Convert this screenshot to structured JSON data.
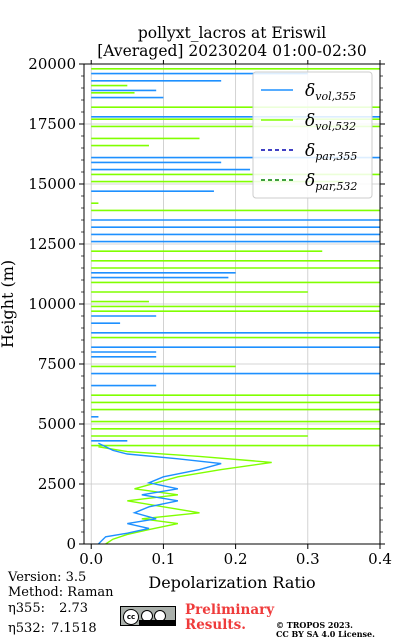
{
  "chart_data": {
    "type": "line",
    "title": "pollyxt_lacros at Eriswil",
    "subtitle": "[Averaged] 20230204 01:00-02:30",
    "xlabel": "Depolarization Ratio",
    "ylabel": "Height (m)",
    "xlim": [
      -0.01,
      0.4
    ],
    "ylim": [
      0,
      20000
    ],
    "x_ticks": [
      "0.0",
      "0.1",
      "0.2",
      "0.3",
      "0.4"
    ],
    "y_ticks": [
      "0",
      "2500",
      "5000",
      "7500",
      "10000",
      "12500",
      "15000",
      "17500",
      "20000"
    ],
    "grid": true,
    "legend_position": "top-right",
    "legend": [
      {
        "label_main": "δ",
        "label_sub": "vol,355",
        "style": "solid",
        "color": "#1e90ff"
      },
      {
        "label_main": "δ",
        "label_sub": "vol,532",
        "style": "solid",
        "color": "#80ff00"
      },
      {
        "label_main": "δ",
        "label_sub": "par,355",
        "style": "dashed",
        "color": "#0000b0"
      },
      {
        "label_main": "δ",
        "label_sub": "par,532",
        "style": "dashed",
        "color": "#008000"
      }
    ],
    "series": [
      {
        "name": "δvol,355",
        "color": "#1e90ff",
        "x": [
          0.01,
          0.015,
          0.02,
          0.05,
          0.08,
          0.05,
          0.09,
          0.06,
          0.08,
          0.12,
          0.07,
          0.12,
          0.08,
          0.1,
          0.15,
          0.18,
          0.12,
          0.05,
          0.03,
          0.02,
          0.01
        ],
        "y": [
          0,
          150,
          300,
          450,
          650,
          850,
          1050,
          1300,
          1550,
          1800,
          2050,
          2300,
          2550,
          2800,
          3100,
          3350,
          3550,
          3750,
          3900,
          4050,
          4200
        ]
      },
      {
        "name": "δvol,532",
        "color": "#80ff00",
        "x": [
          0.02,
          0.03,
          0.05,
          0.08,
          0.12,
          0.07,
          0.15,
          0.1,
          0.05,
          0.12,
          0.06,
          0.09,
          0.12,
          0.18,
          0.25,
          0.15,
          0.05,
          0.01
        ],
        "y": [
          0,
          200,
          400,
          600,
          850,
          1050,
          1300,
          1550,
          1800,
          2050,
          2300,
          2550,
          2800,
          3100,
          3400,
          3650,
          3850,
          4050
        ]
      }
    ],
    "cloud_spikes": {
      "blue": [
        {
          "y": 19600,
          "x": 0.3
        },
        {
          "y": 19300,
          "x": 0.18
        },
        {
          "y": 18900,
          "x": 0.09
        },
        {
          "y": 18600,
          "x": 0.1
        },
        {
          "y": 17800,
          "x": 0.4
        },
        {
          "y": 16100,
          "x": 0.4
        },
        {
          "y": 15900,
          "x": 0.18
        },
        {
          "y": 15600,
          "x": 0.22
        },
        {
          "y": 14700,
          "x": 0.17
        },
        {
          "y": 13500,
          "x": 0.4
        },
        {
          "y": 13200,
          "x": 0.4
        },
        {
          "y": 12900,
          "x": 0.4
        },
        {
          "y": 12600,
          "x": 0.4
        },
        {
          "y": 11300,
          "x": 0.2
        },
        {
          "y": 11100,
          "x": 0.19
        },
        {
          "y": 9500,
          "x": 0.09
        },
        {
          "y": 9200,
          "x": 0.04
        },
        {
          "y": 8800,
          "x": 0.4
        },
        {
          "y": 8200,
          "x": 0.4
        },
        {
          "y": 8000,
          "x": 0.09
        },
        {
          "y": 7800,
          "x": 0.09
        },
        {
          "y": 7100,
          "x": 0.4
        },
        {
          "y": 6600,
          "x": 0.09
        },
        {
          "y": 5300,
          "x": 0.01
        },
        {
          "y": 4300,
          "x": 0.05
        }
      ],
      "green": [
        {
          "y": 19800,
          "x": 0.4
        },
        {
          "y": 19100,
          "x": 0.05
        },
        {
          "y": 18800,
          "x": 0.06
        },
        {
          "y": 18200,
          "x": 0.4
        },
        {
          "y": 17700,
          "x": 0.4
        },
        {
          "y": 17400,
          "x": 0.4
        },
        {
          "y": 16900,
          "x": 0.15
        },
        {
          "y": 16600,
          "x": 0.08
        },
        {
          "y": 15400,
          "x": 0.4
        },
        {
          "y": 15100,
          "x": 0.35
        },
        {
          "y": 14200,
          "x": 0.01
        },
        {
          "y": 13900,
          "x": 0.4
        },
        {
          "y": 12200,
          "x": 0.32
        },
        {
          "y": 11800,
          "x": 0.4
        },
        {
          "y": 11500,
          "x": 0.4
        },
        {
          "y": 10900,
          "x": 0.4
        },
        {
          "y": 10500,
          "x": 0.3
        },
        {
          "y": 10100,
          "x": 0.08
        },
        {
          "y": 9900,
          "x": 0.4
        },
        {
          "y": 9700,
          "x": 0.4
        },
        {
          "y": 8600,
          "x": 0.4
        },
        {
          "y": 7400,
          "x": 0.2
        },
        {
          "y": 6200,
          "x": 0.4
        },
        {
          "y": 5900,
          "x": 0.4
        },
        {
          "y": 5600,
          "x": 0.4
        },
        {
          "y": 5100,
          "x": 0.4
        },
        {
          "y": 4800,
          "x": 0.4
        },
        {
          "y": 4500,
          "x": 0.3
        },
        {
          "y": 4100,
          "x": 0.4
        }
      ]
    }
  },
  "meta": {
    "version": "Version: 3.5",
    "method": "Method: Raman",
    "eta355_label": "η355:",
    "eta355_value": "2.73",
    "eta532_label": "η532:",
    "eta532_value": "7.1518"
  },
  "footer": {
    "preliminary_line1": "Preliminary",
    "preliminary_line2": "Results.",
    "copyright": "© TROPOS 2023.",
    "license": "CC BY SA 4.0 License."
  }
}
